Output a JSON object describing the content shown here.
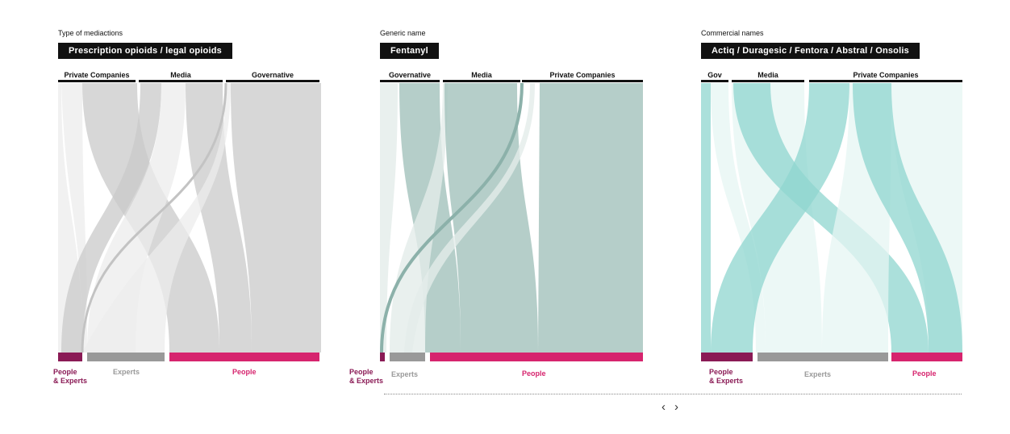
{
  "panels": [
    {
      "kicker": "Type of mediactions",
      "title": "Prescription opioids / legal opioids",
      "sources": [
        "Private Companies",
        "Media",
        "Governative"
      ],
      "targets": [
        "People\n& Experts",
        "Experts",
        "People"
      ],
      "colors": {
        "flow": "#c9c9c9",
        "flow_light": "#ececec"
      }
    },
    {
      "kicker": "Generic name",
      "title": "Fentanyl",
      "sources": [
        "Governative",
        "Media",
        "Private Companies"
      ],
      "targets": [
        "People\n& Experts",
        "Experts",
        "People"
      ],
      "colors": {
        "flow": "#a3c2bc",
        "flow_light": "#e4ecea"
      }
    },
    {
      "kicker": "Commercial names",
      "title": "Actiq / Duragesic / Fentora / Abstral / Onsolis",
      "sources": [
        "Gov",
        "Media",
        "Private Companies"
      ],
      "targets": [
        "People\n& Experts",
        "Experts",
        "People"
      ],
      "colors": {
        "flow": "#8fd6cf",
        "flow_light": "#e6f5f3"
      }
    }
  ],
  "target_colors": {
    "people_experts": "#8a1a55",
    "experts": "#999999",
    "people": "#d6246e"
  },
  "nav": {
    "prev": "‹",
    "next": "›"
  }
}
